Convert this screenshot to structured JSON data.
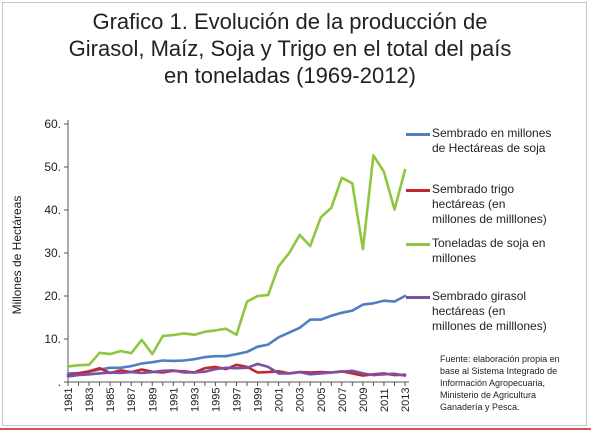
{
  "title_lines": [
    "Grafico 1. Evolución de la producción de",
    "Girasol, Maíz, Soja y Trigo en el total del país",
    "en toneladas (1969-2012)"
  ],
  "source_lines": [
    "Fuente: elaboración propia en",
    "base al Sistema Integrado de",
    "Información Agropecuaria,",
    "Ministerio de Agricultura",
    "Ganadería y Pesca."
  ],
  "chart_data": {
    "type": "line",
    "title": "Grafico 1. Evolución de la producción de Girasol, Maíz, Soja y Trigo en el total del país en toneladas (1969-2012)",
    "ylabel": "Millones de Hectáreas",
    "xlabel": "",
    "ylim": [
      0,
      60
    ],
    "yticks": [
      0,
      10,
      20,
      30,
      40,
      50,
      60
    ],
    "ytick_labels": [
      ".",
      "10.",
      "20.",
      "30.",
      "40.",
      "50.",
      "60."
    ],
    "xtick_labels": [
      "1981",
      "1983",
      "1985",
      "1987",
      "1989",
      "1991",
      "1993",
      "1995",
      "1997",
      "1999",
      "2001",
      "2003",
      "2005",
      "2007",
      "2009",
      "2011",
      "2013"
    ],
    "grid": false,
    "legend_position": "right",
    "x": [
      1981,
      1982,
      1983,
      1984,
      1985,
      1986,
      1987,
      1988,
      1989,
      1990,
      1991,
      1992,
      1993,
      1994,
      1995,
      1996,
      1997,
      1998,
      1999,
      2000,
      2001,
      2002,
      2003,
      2004,
      2005,
      2006,
      2007,
      2008,
      2009,
      2010,
      2011,
      2012,
      2013
    ],
    "series": [
      {
        "name": "Sembrado en millones de Hectáreas de soja",
        "color": "#4f7fc1",
        "legend_lines": [
          "Sembrado en millones",
          "de Hectáreas de soja"
        ],
        "values": [
          2.0,
          2.1,
          2.4,
          2.9,
          3.3,
          3.3,
          3.7,
          4.3,
          4.6,
          5.0,
          4.9,
          5.0,
          5.3,
          5.8,
          6.0,
          6.0,
          6.5,
          7.0,
          8.2,
          8.7,
          10.4,
          11.5,
          12.6,
          14.5,
          14.5,
          15.4,
          16.1,
          16.6,
          18.0,
          18.3,
          18.9,
          18.7,
          20.0
        ]
      },
      {
        "name": "Sembrado trigo hectáreas (en millones de milllones)",
        "color": "#c0282d",
        "legend_lines": [
          "Sembrado trigo",
          "hectáreas (en",
          "millones de milllones)"
        ],
        "values": [
          1.5,
          2.0,
          2.5,
          3.2,
          2.1,
          2.7,
          2.3,
          2.9,
          2.4,
          2.2,
          2.6,
          2.5,
          2.2,
          3.2,
          3.5,
          3.0,
          4.0,
          3.5,
          2.2,
          2.3,
          2.5,
          2.0,
          2.3,
          2.2,
          2.3,
          2.2,
          2.5,
          2.0,
          1.5,
          1.8,
          2.0,
          1.6,
          1.7
        ]
      },
      {
        "name": "Toneladas de soja en millones",
        "color": "#8dc63f",
        "legend_lines": [
          "Toneladas de soja en",
          "millones"
        ],
        "values": [
          3.6,
          3.9,
          4.0,
          6.8,
          6.5,
          7.2,
          6.7,
          9.8,
          6.5,
          10.7,
          10.9,
          11.3,
          11.0,
          11.7,
          12.0,
          12.4,
          11.0,
          18.7,
          20.0,
          20.2,
          26.9,
          30.0,
          34.2,
          31.6,
          38.3,
          40.5,
          47.5,
          46.2,
          30.9,
          52.7,
          48.9,
          40.1,
          49.3
        ]
      },
      {
        "name": "Sembrado girasol hectáreas (en millones de milllones)",
        "color": "#7f4fa8",
        "legend_lines": [
          "Sembrado girasol",
          "hectáreas (en",
          "millones de milllones)"
        ],
        "values": [
          1.3,
          1.6,
          1.8,
          2.0,
          2.2,
          2.1,
          2.3,
          2.1,
          2.3,
          2.6,
          2.7,
          2.2,
          2.2,
          2.4,
          3.0,
          3.3,
          3.2,
          3.3,
          4.2,
          3.5,
          2.0,
          2.0,
          2.3,
          1.8,
          2.0,
          2.2,
          2.4,
          2.6,
          2.0,
          1.6,
          1.8,
          1.9,
          1.5
        ]
      }
    ]
  }
}
